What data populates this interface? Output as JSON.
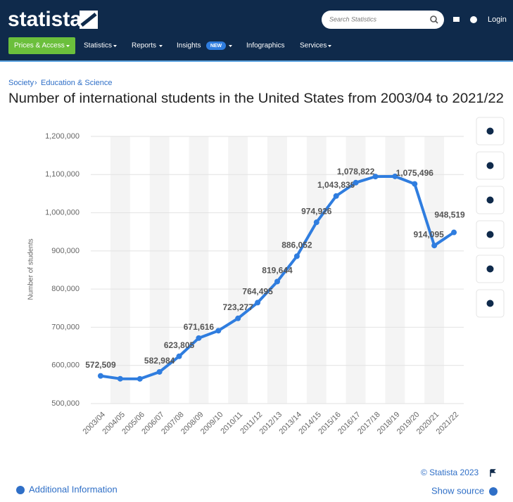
{
  "header": {
    "logo": "statista",
    "search_placeholder": "Search Statistics",
    "login": "Login",
    "nav": [
      "Prices & Access",
      "Statistics",
      "Reports",
      "Insights",
      "Infographics",
      "Services"
    ],
    "badge": "NEW"
  },
  "breadcrumb": [
    "Society",
    "Education & Science"
  ],
  "chart_data": {
    "type": "line",
    "title": "Number of international students in the United States from 2003/04 to 2021/22",
    "y_label": "Number of students",
    "categories": [
      "2003/04",
      "2004/05",
      "2005/06",
      "2006/07",
      "2007/08",
      "2008/09",
      "2009/10",
      "2010/11",
      "2011/12",
      "2012/13",
      "2013/14",
      "2014/15",
      "2015/16",
      "2016/17",
      "2017/18",
      "2018/19",
      "2019/20",
      "2020/21",
      "2021/22"
    ],
    "series": [
      {
        "name": "Number of students",
        "color": "#2f7ddf",
        "values": [
          572509,
          565039,
          564766,
          582984,
          623805,
          671616,
          690923,
          723277,
          764495,
          819644,
          886052,
          974926,
          1043839,
          1078822,
          1094792,
          1095299,
          1075496,
          914095,
          948519
        ],
        "value_labels": [
          "572,509",
          null,
          null,
          "582,984",
          "623,805",
          "671,616",
          null,
          "723,277",
          "764,495",
          "819,644",
          "886,052",
          "974,926",
          "1,043,839",
          "1,078,822",
          null,
          null,
          "1,075,496",
          "914,095",
          "948,519"
        ]
      }
    ],
    "ylim": [
      500000,
      1200000
    ],
    "yticks": [
      {
        "value": 500000,
        "label": "500,000"
      },
      {
        "value": 600000,
        "label": "600,000"
      },
      {
        "value": 700000,
        "label": "700,000"
      },
      {
        "value": 800000,
        "label": "800,000"
      },
      {
        "value": 900000,
        "label": "900,000"
      },
      {
        "value": 1000000,
        "label": "1,000,000"
      },
      {
        "value": 1100000,
        "label": "1,100,000"
      },
      {
        "value": 1200000,
        "label": "1,200,000"
      }
    ],
    "grid": true
  },
  "footer": {
    "copyright": "© Statista 2023",
    "additional": "Additional Information",
    "source": "Show source"
  }
}
